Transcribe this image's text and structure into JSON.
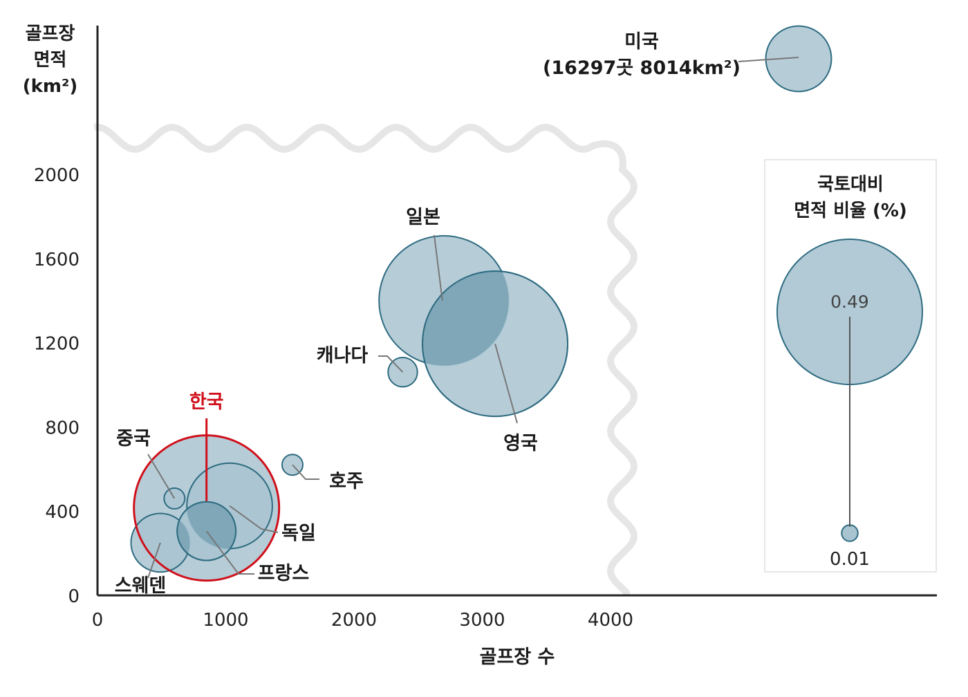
{
  "chart_data": {
    "type": "bubble",
    "ylabel": [
      "골프장",
      "면적",
      "(km²)"
    ],
    "xlabel": "골프장 수",
    "xlim": [
      0,
      4000
    ],
    "ylim": [
      0,
      2000
    ],
    "x_ticks": [
      0,
      1000,
      2000,
      3000,
      4000
    ],
    "y_ticks": [
      0,
      400,
      800,
      1200,
      1600,
      2000
    ],
    "axis_break": true,
    "points": [
      {
        "name": "한국",
        "x": 850,
        "y": 415,
        "ratio": 0.49,
        "highlight": true
      },
      {
        "name": "중국",
        "x": 600,
        "y": 460,
        "ratio": 0.01
      },
      {
        "name": "독일",
        "x": 1030,
        "y": 425,
        "ratio": 0.17
      },
      {
        "name": "프랑스",
        "x": 850,
        "y": 305,
        "ratio": 0.08
      },
      {
        "name": "스웨덴",
        "x": 490,
        "y": 250,
        "ratio": 0.08
      },
      {
        "name": "호주",
        "x": 1520,
        "y": 620,
        "ratio": 0.01
      },
      {
        "name": "캐나다",
        "x": 2380,
        "y": 1060,
        "ratio": 0.02
      },
      {
        "name": "일본",
        "x": 2700,
        "y": 1400,
        "ratio": 0.39
      },
      {
        "name": "영국",
        "x": 3100,
        "y": 1195,
        "ratio": 0.49
      },
      {
        "name": "미국",
        "note": "(16297곳 8014km²)",
        "x": 16297,
        "y": 8014,
        "ratio": 0.1
      }
    ],
    "legend": {
      "title": [
        "국토대비",
        "면적 비율 (%)"
      ],
      "max_label": "0.49",
      "min_label": "0.01"
    },
    "colors": {
      "bubble_fill": "#a9c4d1",
      "bubble_overlap": "#7fa7b8",
      "bubble_stroke": "#2e6b80",
      "highlight": "#d0101b",
      "leader": "#777777",
      "break_line": "#e6e6e6",
      "axis": "#222222"
    }
  }
}
